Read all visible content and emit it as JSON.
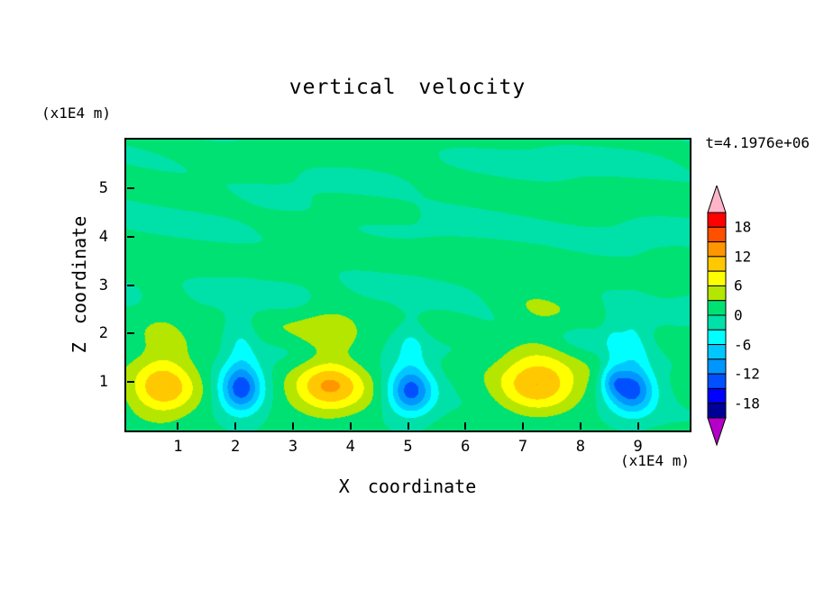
{
  "chart_data": {
    "type": "filled_contour",
    "title": "vertical velocity",
    "xlabel": "X coordinate",
    "ylabel": "Z coordinate",
    "x_unit_label": "(x1E4 m)",
    "y_unit_label": "(x1E4 m)",
    "time_label": "t=4.1976e+06",
    "x_range": [
      0.1,
      9.9
    ],
    "z_range": [
      0,
      6
    ],
    "x_ticks": [
      1,
      2,
      3,
      4,
      5,
      6,
      7,
      8,
      9
    ],
    "y_ticks": [
      1,
      2,
      3,
      4,
      5
    ],
    "contour_interval": 3,
    "levels": [
      -21,
      -18,
      -15,
      -12,
      -9,
      -6,
      -3,
      0,
      3,
      6,
      9,
      12,
      15,
      18,
      21
    ],
    "band_colors": [
      "#b400c8",
      "#000096",
      "#0000ff",
      "#0050ff",
      "#0096ff",
      "#00c8ff",
      "#00ffff",
      "#00e1aa",
      "#00e173",
      "#b4e600",
      "#ffff00",
      "#ffc800",
      "#ff9600",
      "#ff5000",
      "#ff0000",
      "#ffb4c8"
    ],
    "colorbar_labels": [
      18,
      12,
      6,
      0,
      -6,
      -12,
      -18
    ],
    "colorbar_range": [
      -21,
      21
    ],
    "field": {
      "description": "Convection cells near the bottom boundary (z ~ 0.9 x1E4 m): updrafts (positive w, yellow, peak ~ +10) centered near x ~ 0.7, 3.6, 7.2; downdrafts (negative w, blue, peak ~ -13) near x ~ 2.1, 5.0, 8.9; weak wavy perturbations |w| < 3 (two green bands) fill the region above z ~ 2",
      "background_offset": 0.4,
      "cells": [
        {
          "x": 0.75,
          "z": 0.85,
          "a": 10.6,
          "sx": 0.62,
          "sz": 0.55
        },
        {
          "x": 2.1,
          "z": 0.85,
          "a": -13.5,
          "sx": 0.38,
          "sz": 0.5
        },
        {
          "x": 3.65,
          "z": 0.9,
          "a": 10.8,
          "sx": 0.68,
          "sz": 0.55
        },
        {
          "x": 5.05,
          "z": 0.8,
          "a": -13.0,
          "sx": 0.4,
          "sz": 0.48
        },
        {
          "x": 7.25,
          "z": 0.9,
          "a": 10.4,
          "sx": 0.74,
          "sz": 0.55
        },
        {
          "x": 8.9,
          "z": 0.85,
          "a": -13.5,
          "sx": 0.4,
          "sz": 0.5
        },
        {
          "x": 8.55,
          "z": 1.05,
          "a": -6.5,
          "sx": 0.22,
          "sz": 0.35
        }
      ],
      "plume_factor": 0.28,
      "plume_dz": 1.0,
      "noise_amplitude": 2.4
    }
  }
}
